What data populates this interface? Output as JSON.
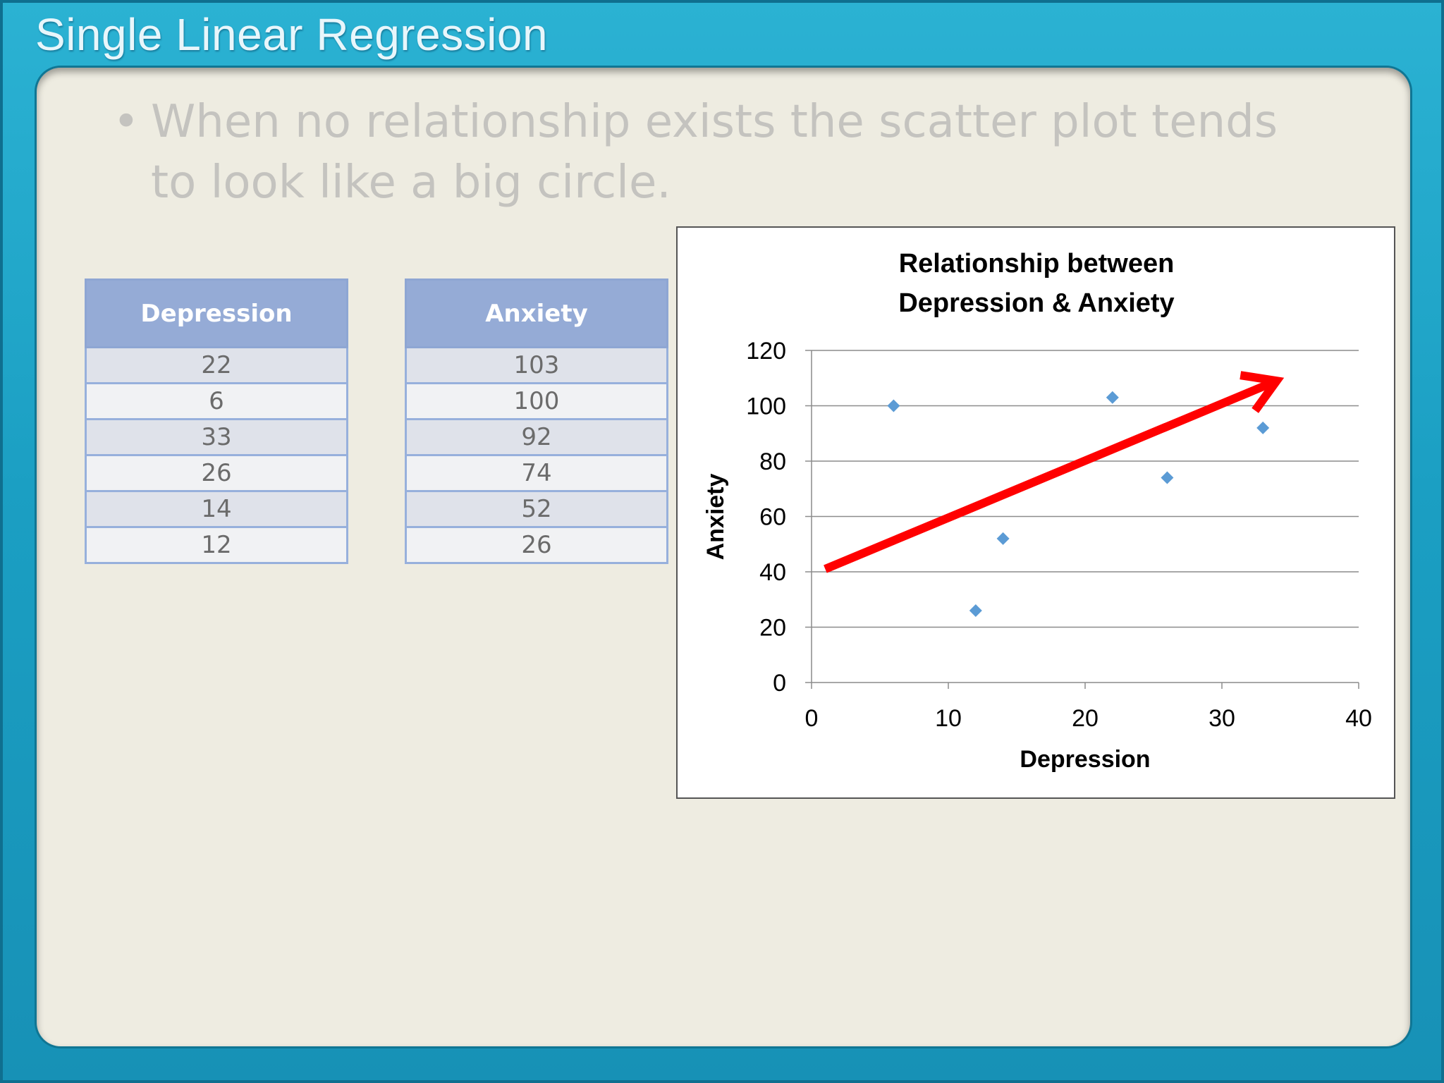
{
  "slide": {
    "title": "Single Linear Regression",
    "bullet_symbol": "•",
    "bullet": "When no relationship exists the scatter plot tends to look like a big circle."
  },
  "tables": [
    {
      "header": "Depression",
      "values": [
        "22",
        "6",
        "33",
        "26",
        "14",
        "12"
      ]
    },
    {
      "header": "Anxiety",
      "values": [
        "103",
        "100",
        "92",
        "74",
        "52",
        "26"
      ]
    }
  ],
  "chart_data": {
    "type": "scatter",
    "title": [
      "Relationship between",
      "Depression & Anxiety"
    ],
    "xlabel": "Depression",
    "ylabel": "Anxiety",
    "xlim": [
      0,
      40
    ],
    "ylim": [
      0,
      120
    ],
    "x_ticks": [
      0,
      10,
      20,
      30,
      40
    ],
    "y_ticks": [
      0,
      20,
      40,
      60,
      80,
      100,
      120
    ],
    "grid": "horizontal",
    "legend": "none",
    "points": [
      {
        "x": 22,
        "y": 103
      },
      {
        "x": 6,
        "y": 100
      },
      {
        "x": 33,
        "y": 92
      },
      {
        "x": 26,
        "y": 74
      },
      {
        "x": 14,
        "y": 52
      },
      {
        "x": 12,
        "y": 26
      }
    ],
    "marker_color": "#5b9bd5",
    "annotation": {
      "shape": "arrow",
      "color": "#ff0000",
      "from": {
        "x": 1,
        "y": 41
      },
      "to": {
        "x": 34,
        "y": 109
      }
    }
  }
}
